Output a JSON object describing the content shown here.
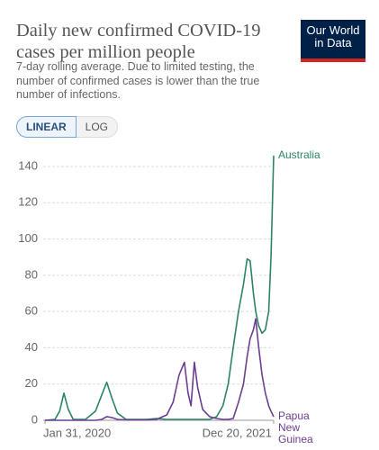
{
  "chart_data": {
    "type": "line",
    "title": "Daily new confirmed COVID-19 cases per million people",
    "subtitle": "7-day rolling average. Due to limited testing, the number of confirmed cases is lower than the true number of infections.",
    "logo": "Our World in Data",
    "scale_buttons": [
      "LINEAR",
      "LOG"
    ],
    "log_scale": false,
    "grid": true,
    "x": [
      "2020-01-31",
      "2020-03-01",
      "2020-03-15",
      "2020-03-28",
      "2020-04-10",
      "2020-04-25",
      "2020-06-01",
      "2020-07-01",
      "2020-07-20",
      "2020-08-04",
      "2020-08-20",
      "2020-09-05",
      "2020-10-01",
      "2020-12-01",
      "2021-01-01",
      "2021-02-01",
      "2021-02-20",
      "2021-03-10",
      "2021-03-26",
      "2021-04-06",
      "2021-04-15",
      "2021-04-25",
      "2021-05-05",
      "2021-05-20",
      "2021-06-10",
      "2021-07-01",
      "2021-07-20",
      "2021-08-05",
      "2021-08-20",
      "2021-09-05",
      "2021-09-20",
      "2021-10-01",
      "2021-10-10",
      "2021-10-20",
      "2021-10-27",
      "2021-11-05",
      "2021-11-15",
      "2021-11-25",
      "2021-12-05",
      "2021-12-12",
      "2021-12-20"
    ],
    "series": [
      {
        "name": "Australia",
        "color": "#2c8465",
        "values": [
          0,
          0.5,
          5,
          15,
          6,
          0.5,
          0.5,
          5,
          14,
          21,
          12,
          4,
          0.5,
          0.5,
          1,
          0.5,
          0.5,
          0.5,
          0.5,
          0.5,
          0.5,
          0.5,
          0.5,
          0.5,
          0.5,
          2,
          8,
          20,
          40,
          60,
          75,
          89,
          88,
          70,
          60,
          52,
          48,
          50,
          60,
          90,
          146
        ]
      },
      {
        "name": "Papua New Guinea",
        "color": "#6d3e91",
        "values": [
          0,
          0,
          0,
          0,
          0,
          0,
          0,
          0,
          0.5,
          2,
          1.5,
          0.5,
          0.2,
          0.2,
          0.5,
          3,
          10,
          25,
          32,
          15,
          8,
          32,
          18,
          6,
          2,
          1,
          0.5,
          0.5,
          1,
          10,
          20,
          35,
          45,
          50,
          56,
          40,
          25,
          15,
          8,
          5,
          2
        ]
      }
    ],
    "xlim": [
      "2020-01-31",
      "2021-12-20"
    ],
    "xticks": [
      {
        "value": "2020-01-31",
        "label": "Jan 31, 2020"
      },
      {
        "value": "2021-12-20",
        "label": "Dec 20, 2021"
      }
    ],
    "ylim": [
      0,
      140
    ],
    "yticks": [
      0,
      20,
      40,
      60,
      80,
      100,
      120,
      140
    ]
  }
}
